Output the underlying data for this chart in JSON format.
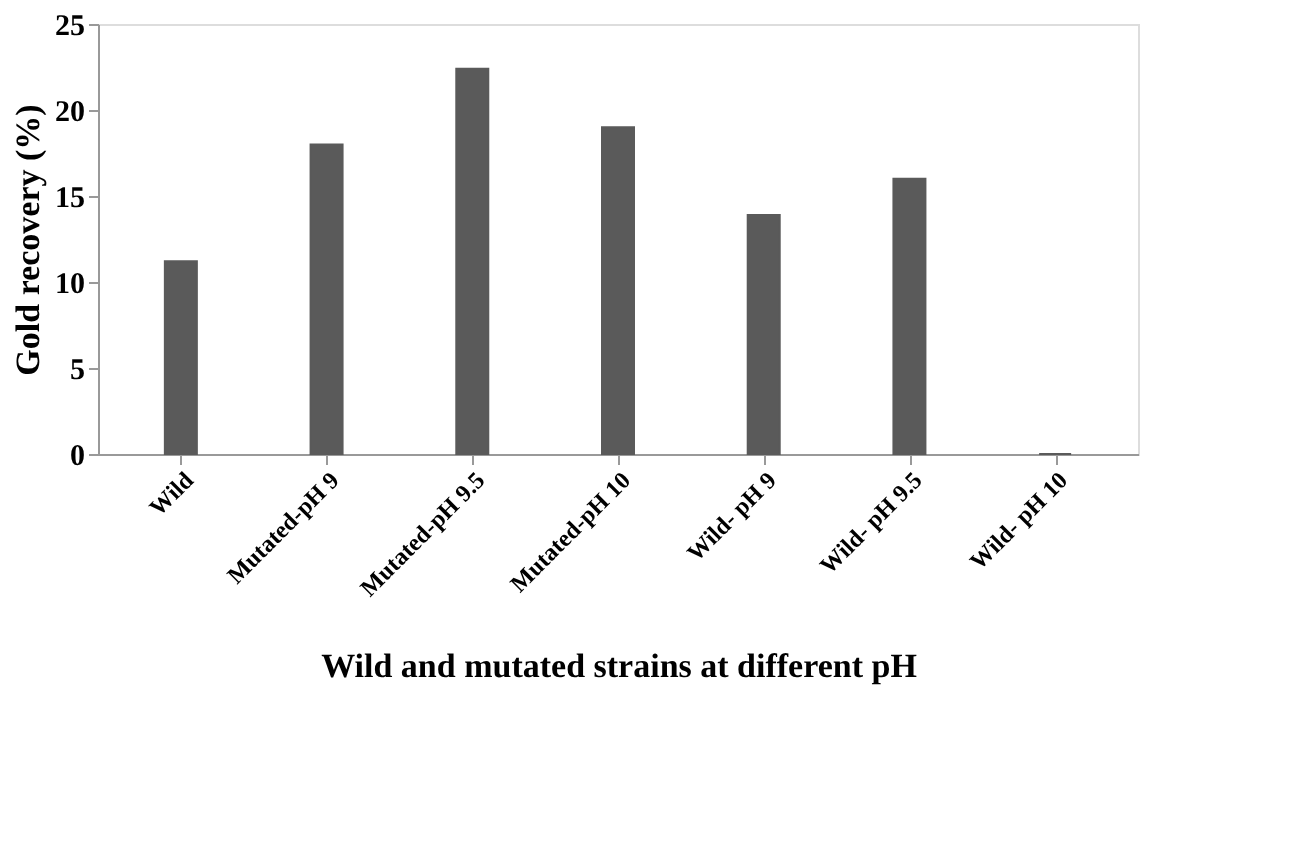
{
  "chart_data": {
    "type": "bar",
    "xlabel": "Wild and mutated strains at different  pH",
    "ylabel": "Gold recovery  (%)",
    "categories": [
      "Wild",
      "Mutated-pH 9",
      "Mutated-pH 9.5",
      "Mutated-pH 10",
      "Wild- pH 9",
      "Wild- pH 9.5",
      "Wild- pH 10"
    ],
    "values": [
      11.2,
      18.0,
      22.4,
      19.0,
      13.9,
      16.0,
      0
    ],
    "color": "#5a5a5a",
    "ylim": [
      0,
      25
    ],
    "yticks": [
      0,
      5,
      10,
      15,
      20,
      25
    ],
    "grid": false
  }
}
